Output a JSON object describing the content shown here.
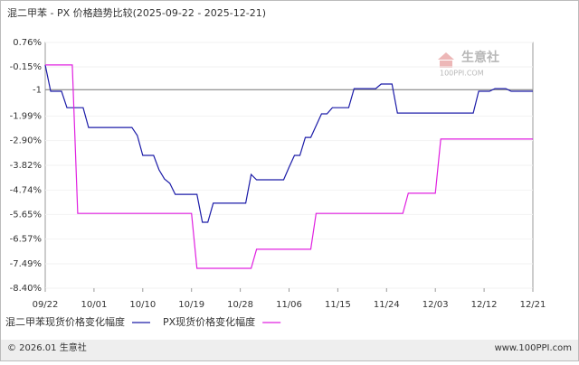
{
  "chart_data": {
    "type": "line",
    "title": "混二甲苯 - PX 价格趋势比较(2025-09-22 - 2025-12-21)",
    "xlim": [
      "09/22",
      "12/21"
    ],
    "xticks": [
      "09/22",
      "10/01",
      "10/10",
      "10/19",
      "10/28",
      "11/06",
      "11/15",
      "11/24",
      "12/03",
      "12/12",
      "12/21"
    ],
    "ylim": [
      -8.4,
      0.76
    ],
    "yticks": [
      {
        "value": 0.76,
        "label": "0.76%"
      },
      {
        "value": -0.15,
        "label": "-0.15%"
      },
      -1,
      {
        "value": -1.99,
        "label": "-1.99%"
      },
      {
        "value": -2.9,
        "label": "-2.90%"
      },
      {
        "value": -3.82,
        "label": "-3.82%"
      },
      {
        "value": -4.74,
        "label": "-4.74%"
      },
      {
        "value": -5.65,
        "label": "-5.65%"
      },
      {
        "value": -6.57,
        "label": "-6.57%"
      },
      {
        "value": -7.49,
        "label": "-7.49%"
      },
      {
        "value": -8.4,
        "label": "-8.40%"
      }
    ],
    "reference_line": -1,
    "grid": true,
    "series": [
      {
        "name": "混二甲苯现货价格变化幅度",
        "color": "#1c1ca8",
        "x": [
          "09/22",
          "09/23",
          "09/25",
          "09/26",
          "09/29",
          "09/30",
          "10/08",
          "10/09",
          "10/10",
          "10/12",
          "10/13",
          "10/14",
          "10/15",
          "10/16",
          "10/20",
          "10/21",
          "10/22",
          "10/23",
          "10/29",
          "10/30",
          "10/31",
          "11/05",
          "11/06",
          "11/07",
          "11/08",
          "11/09",
          "11/10",
          "11/12",
          "11/13",
          "11/14",
          "11/17",
          "11/18",
          "11/22",
          "11/23",
          "11/25",
          "11/26",
          "12/10",
          "12/11",
          "12/13",
          "12/14",
          "12/16",
          "12/17",
          "12/21"
        ],
        "values": [
          -0.08,
          -1.06,
          -1.06,
          -1.67,
          -1.67,
          -2.41,
          -2.41,
          -2.71,
          -3.45,
          -3.45,
          -3.99,
          -4.33,
          -4.49,
          -4.9,
          -4.9,
          -5.94,
          -5.94,
          -5.23,
          -5.23,
          -4.16,
          -4.36,
          -4.36,
          -3.89,
          -3.45,
          -3.45,
          -2.78,
          -2.78,
          -1.9,
          -1.9,
          -1.67,
          -1.67,
          -0.96,
          -0.96,
          -0.79,
          -0.79,
          -1.87,
          -1.87,
          -1.06,
          -1.06,
          -0.96,
          -0.96,
          -1.06,
          -1.06
        ]
      },
      {
        "name": "PX现货价格变化幅度",
        "color": "#e020e0",
        "x": [
          "09/22",
          "09/27",
          "09/28",
          "10/19",
          "10/20",
          "10/30",
          "10/31",
          "11/10",
          "11/11",
          "11/27",
          "11/28",
          "12/03",
          "12/04",
          "12/21"
        ],
        "values": [
          -0.08,
          -0.08,
          -5.61,
          -5.61,
          -7.66,
          -7.66,
          -6.95,
          -6.95,
          -5.61,
          -5.61,
          -4.86,
          -4.86,
          -2.84,
          -2.84
        ]
      }
    ],
    "watermark": {
      "name": "生意社",
      "site": "100PPI.COM"
    },
    "footer": {
      "left": "© 2026.01 生意社",
      "right": "www.100PPI.com"
    }
  }
}
